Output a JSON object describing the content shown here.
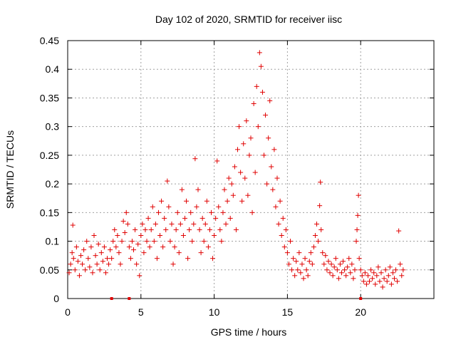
{
  "chart_data": {
    "type": "scatter",
    "title": "Day 102 of 2020, SRMTID for receiver iisc",
    "xlabel": "GPS time / hours",
    "ylabel": "SRMTID / TECUs",
    "xlim": [
      0,
      25
    ],
    "ylim": [
      0,
      0.45
    ],
    "xticks": [
      0,
      5,
      10,
      15,
      20
    ],
    "yticks": [
      0,
      0.05,
      0.1,
      0.15,
      0.2,
      0.25,
      0.3,
      0.35,
      0.4,
      0.45
    ],
    "grid": true,
    "marker": "+",
    "color": "#e00000",
    "series": [
      {
        "name": "SRMTID",
        "points": [
          [
            0.1,
            0.045
          ],
          [
            0.2,
            0.06
          ],
          [
            0.3,
            0.08
          ],
          [
            0.35,
            0.128
          ],
          [
            0.4,
            0.07
          ],
          [
            0.5,
            0.05
          ],
          [
            0.6,
            0.09
          ],
          [
            0.7,
            0.065
          ],
          [
            0.8,
            0.04
          ],
          [
            0.9,
            0.075
          ],
          [
            1.0,
            0.06
          ],
          [
            1.1,
            0.085
          ],
          [
            1.2,
            0.05
          ],
          [
            1.3,
            0.1
          ],
          [
            1.4,
            0.07
          ],
          [
            1.5,
            0.055
          ],
          [
            1.6,
            0.09
          ],
          [
            1.7,
            0.045
          ],
          [
            1.8,
            0.11
          ],
          [
            1.9,
            0.075
          ],
          [
            2.0,
            0.06
          ],
          [
            2.1,
            0.095
          ],
          [
            2.2,
            0.05
          ],
          [
            2.3,
            0.08
          ],
          [
            2.4,
            0.065
          ],
          [
            2.5,
            0.09
          ],
          [
            2.6,
            0.045
          ],
          [
            2.7,
            0.07
          ],
          [
            2.8,
            0.06
          ],
          [
            2.9,
            0.085
          ],
          [
            3.0,
            0.07
          ],
          [
            3.1,
            0.1
          ],
          [
            3.2,
            0.12
          ],
          [
            3.3,
            0.09
          ],
          [
            3.4,
            0.11
          ],
          [
            3.5,
            0.08
          ],
          [
            3.6,
            0.06
          ],
          [
            3.7,
            0.1
          ],
          [
            3.8,
            0.135
          ],
          [
            3.9,
            0.115
          ],
          [
            4.0,
            0.15
          ],
          [
            4.1,
            0.13
          ],
          [
            4.2,
            0.09
          ],
          [
            4.3,
            0.07
          ],
          [
            4.4,
            0.1
          ],
          [
            4.5,
            0.085
          ],
          [
            4.6,
            0.12
          ],
          [
            4.7,
            0.06
          ],
          [
            4.8,
            0.095
          ],
          [
            4.9,
            0.04
          ],
          [
            5.0,
            0.11
          ],
          [
            5.1,
            0.13
          ],
          [
            5.2,
            0.08
          ],
          [
            5.3,
            0.12
          ],
          [
            5.4,
            0.1
          ],
          [
            5.5,
            0.14
          ],
          [
            5.6,
            0.09
          ],
          [
            5.7,
            0.12
          ],
          [
            5.8,
            0.16
          ],
          [
            5.9,
            0.1
          ],
          [
            6.0,
            0.13
          ],
          [
            6.1,
            0.07
          ],
          [
            6.2,
            0.15
          ],
          [
            6.3,
            0.11
          ],
          [
            6.4,
            0.17
          ],
          [
            6.5,
            0.09
          ],
          [
            6.6,
            0.14
          ],
          [
            6.7,
            0.12
          ],
          [
            6.8,
            0.205
          ],
          [
            6.9,
            0.16
          ],
          [
            7.0,
            0.1
          ],
          [
            7.1,
            0.13
          ],
          [
            7.2,
            0.06
          ],
          [
            7.3,
            0.09
          ],
          [
            7.4,
            0.12
          ],
          [
            7.5,
            0.15
          ],
          [
            7.6,
            0.08
          ],
          [
            7.7,
            0.13
          ],
          [
            7.8,
            0.19
          ],
          [
            7.9,
            0.11
          ],
          [
            8.0,
            0.14
          ],
          [
            8.1,
            0.17
          ],
          [
            8.2,
            0.07
          ],
          [
            8.3,
            0.12
          ],
          [
            8.4,
            0.15
          ],
          [
            8.5,
            0.1
          ],
          [
            8.6,
            0.13
          ],
          [
            8.7,
            0.244
          ],
          [
            8.8,
            0.16
          ],
          [
            8.9,
            0.19
          ],
          [
            9.0,
            0.12
          ],
          [
            9.1,
            0.08
          ],
          [
            9.2,
            0.14
          ],
          [
            9.3,
            0.1
          ],
          [
            9.4,
            0.13
          ],
          [
            9.5,
            0.17
          ],
          [
            9.6,
            0.09
          ],
          [
            9.7,
            0.12
          ],
          [
            9.8,
            0.15
          ],
          [
            9.9,
            0.07
          ],
          [
            10.0,
            0.11
          ],
          [
            10.1,
            0.14
          ],
          [
            10.2,
            0.24
          ],
          [
            10.3,
            0.16
          ],
          [
            10.4,
            0.12
          ],
          [
            10.5,
            0.1
          ],
          [
            10.6,
            0.15
          ],
          [
            10.7,
            0.19
          ],
          [
            10.8,
            0.13
          ],
          [
            10.9,
            0.17
          ],
          [
            11.0,
            0.21
          ],
          [
            11.1,
            0.14
          ],
          [
            11.2,
            0.2
          ],
          [
            11.3,
            0.18
          ],
          [
            11.4,
            0.23
          ],
          [
            11.5,
            0.12
          ],
          [
            11.6,
            0.26
          ],
          [
            11.7,
            0.3
          ],
          [
            11.8,
            0.22
          ],
          [
            11.9,
            0.17
          ],
          [
            12.0,
            0.27
          ],
          [
            12.1,
            0.21
          ],
          [
            12.2,
            0.31
          ],
          [
            12.3,
            0.18
          ],
          [
            12.4,
            0.25
          ],
          [
            12.5,
            0.28
          ],
          [
            12.6,
            0.15
          ],
          [
            12.7,
            0.34
          ],
          [
            12.8,
            0.22
          ],
          [
            12.9,
            0.37
          ],
          [
            13.0,
            0.3
          ],
          [
            13.1,
            0.429
          ],
          [
            13.2,
            0.405
          ],
          [
            13.3,
            0.36
          ],
          [
            13.4,
            0.25
          ],
          [
            13.5,
            0.32
          ],
          [
            13.6,
            0.2
          ],
          [
            13.7,
            0.28
          ],
          [
            13.8,
            0.345
          ],
          [
            13.9,
            0.23
          ],
          [
            14.0,
            0.19
          ],
          [
            14.1,
            0.26
          ],
          [
            14.2,
            0.16
          ],
          [
            14.3,
            0.21
          ],
          [
            14.4,
            0.13
          ],
          [
            14.5,
            0.17
          ],
          [
            14.6,
            0.11
          ],
          [
            14.7,
            0.14
          ],
          [
            14.8,
            0.09
          ],
          [
            14.9,
            0.12
          ],
          [
            15.0,
            0.08
          ],
          [
            15.1,
            0.06
          ],
          [
            15.2,
            0.1
          ],
          [
            15.3,
            0.05
          ],
          [
            15.4,
            0.07
          ],
          [
            15.5,
            0.04
          ],
          [
            15.6,
            0.065
          ],
          [
            15.7,
            0.05
          ],
          [
            15.8,
            0.08
          ],
          [
            15.9,
            0.045
          ],
          [
            16.0,
            0.06
          ],
          [
            16.1,
            0.035
          ],
          [
            16.2,
            0.07
          ],
          [
            16.3,
            0.05
          ],
          [
            16.4,
            0.04
          ],
          [
            16.5,
            0.065
          ],
          [
            16.6,
            0.08
          ],
          [
            16.7,
            0.06
          ],
          [
            16.8,
            0.09
          ],
          [
            16.9,
            0.11
          ],
          [
            17.0,
            0.13
          ],
          [
            17.1,
            0.1
          ],
          [
            17.2,
            0.162
          ],
          [
            17.25,
            0.203
          ],
          [
            17.3,
            0.12
          ],
          [
            17.4,
            0.08
          ],
          [
            17.5,
            0.06
          ],
          [
            17.6,
            0.075
          ],
          [
            17.7,
            0.05
          ],
          [
            17.8,
            0.065
          ],
          [
            17.9,
            0.045
          ],
          [
            18.0,
            0.06
          ],
          [
            18.1,
            0.04
          ],
          [
            18.2,
            0.055
          ],
          [
            18.3,
            0.07
          ],
          [
            18.4,
            0.05
          ],
          [
            18.5,
            0.035
          ],
          [
            18.6,
            0.06
          ],
          [
            18.7,
            0.045
          ],
          [
            18.8,
            0.065
          ],
          [
            18.9,
            0.05
          ],
          [
            19.0,
            0.04
          ],
          [
            19.1,
            0.055
          ],
          [
            19.2,
            0.07
          ],
          [
            19.3,
            0.045
          ],
          [
            19.4,
            0.06
          ],
          [
            19.5,
            0.035
          ],
          [
            19.6,
            0.05
          ],
          [
            19.7,
            0.1
          ],
          [
            19.75,
            0.12
          ],
          [
            19.8,
            0.145
          ],
          [
            19.85,
            0.18
          ],
          [
            19.9,
            0.07
          ],
          [
            20.0,
            0.05
          ],
          [
            20.1,
            0.04
          ],
          [
            20.2,
            0.03
          ],
          [
            20.3,
            0.045
          ],
          [
            20.4,
            0.025
          ],
          [
            20.5,
            0.04
          ],
          [
            20.6,
            0.03
          ],
          [
            20.7,
            0.05
          ],
          [
            20.8,
            0.035
          ],
          [
            20.9,
            0.045
          ],
          [
            21.0,
            0.025
          ],
          [
            21.1,
            0.04
          ],
          [
            21.2,
            0.055
          ],
          [
            21.3,
            0.03
          ],
          [
            21.4,
            0.045
          ],
          [
            21.5,
            0.02
          ],
          [
            21.6,
            0.035
          ],
          [
            21.7,
            0.05
          ],
          [
            21.8,
            0.03
          ],
          [
            21.9,
            0.04
          ],
          [
            22.0,
            0.055
          ],
          [
            22.1,
            0.025
          ],
          [
            22.2,
            0.045
          ],
          [
            22.3,
            0.035
          ],
          [
            22.4,
            0.05
          ],
          [
            22.5,
            0.03
          ],
          [
            22.6,
            0.118
          ],
          [
            22.7,
            0.06
          ],
          [
            22.8,
            0.04
          ],
          [
            22.9,
            0.05
          ]
        ]
      }
    ],
    "zero_markers_x": [
      3.0,
      4.2,
      20.0
    ]
  }
}
